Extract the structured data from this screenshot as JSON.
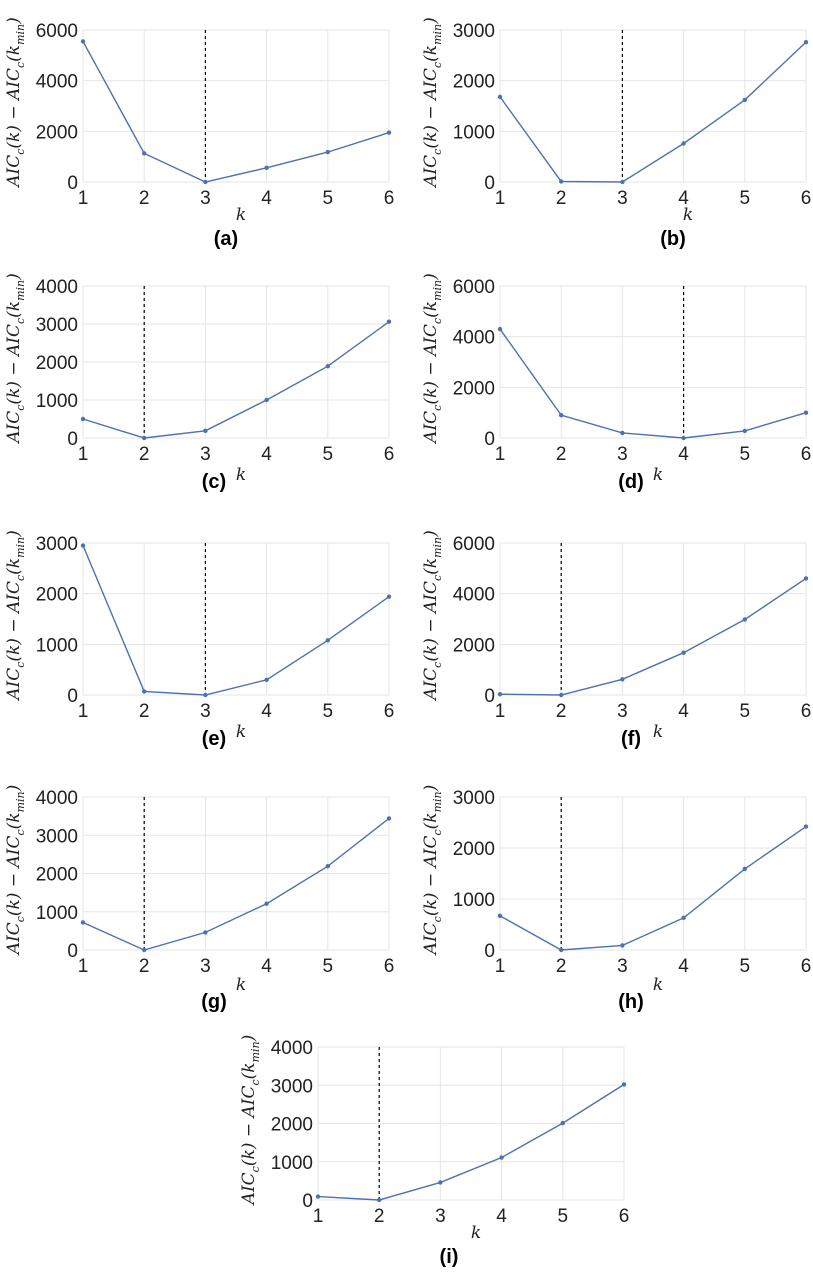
{
  "ylabel_parts": {
    "a": "AIC",
    "c": "c",
    "k_arg": "(k)",
    "minus": "−",
    "k_open": "(k",
    "min": "min",
    "close": ")"
  },
  "chart_data": [
    {
      "label": "(a)",
      "type": "line",
      "xlabel": "k",
      "x": [
        1,
        2,
        3,
        4,
        5,
        6
      ],
      "values": [
        5550,
        1130,
        0,
        560,
        1180,
        1950
      ],
      "yticks": [
        0,
        2000,
        4000,
        6000
      ],
      "ylim": [
        0,
        6000
      ],
      "k_min": 3
    },
    {
      "label": "(b)",
      "type": "line",
      "xlabel": "k",
      "x": [
        1,
        2,
        3,
        4,
        5,
        6
      ],
      "values": [
        1680,
        10,
        0,
        760,
        1620,
        2760
      ],
      "yticks": [
        0,
        1000,
        2000,
        3000
      ],
      "ylim": [
        0,
        3000
      ],
      "k_min": 3
    },
    {
      "label": "(c)",
      "type": "line",
      "xlabel": "k",
      "x": [
        1,
        2,
        3,
        4,
        5,
        6
      ],
      "values": [
        500,
        0,
        190,
        1000,
        1890,
        3060
      ],
      "yticks": [
        0,
        1000,
        2000,
        3000,
        4000
      ],
      "ylim": [
        0,
        4000
      ],
      "k_min": 2
    },
    {
      "label": "(d)",
      "type": "line",
      "xlabel": "k",
      "x": [
        1,
        2,
        3,
        4,
        5,
        6
      ],
      "values": [
        4300,
        900,
        200,
        0,
        280,
        1000
      ],
      "yticks": [
        0,
        2000,
        4000,
        6000
      ],
      "ylim": [
        0,
        6000
      ],
      "k_min": 4
    },
    {
      "label": "(e)",
      "type": "line",
      "xlabel": "k",
      "x": [
        1,
        2,
        3,
        4,
        5,
        6
      ],
      "values": [
        2950,
        70,
        0,
        300,
        1080,
        1940
      ],
      "yticks": [
        0,
        1000,
        2000,
        3000
      ],
      "ylim": [
        0,
        3000
      ],
      "k_min": 3
    },
    {
      "label": "(f)",
      "type": "line",
      "xlabel": "k",
      "x": [
        1,
        2,
        3,
        4,
        5,
        6
      ],
      "values": [
        30,
        0,
        620,
        1670,
        2980,
        4600
      ],
      "yticks": [
        0,
        2000,
        4000,
        6000
      ],
      "ylim": [
        0,
        6000
      ],
      "k_min": 2
    },
    {
      "label": "(g)",
      "type": "line",
      "xlabel": "k",
      "x": [
        1,
        2,
        3,
        4,
        5,
        6
      ],
      "values": [
        720,
        0,
        460,
        1210,
        2190,
        3440
      ],
      "yticks": [
        0,
        1000,
        2000,
        3000,
        4000
      ],
      "ylim": [
        0,
        4000
      ],
      "k_min": 2
    },
    {
      "label": "(h)",
      "type": "line",
      "xlabel": "k",
      "x": [
        1,
        2,
        3,
        4,
        5,
        6
      ],
      "values": [
        670,
        0,
        90,
        630,
        1590,
        2420
      ],
      "yticks": [
        0,
        1000,
        2000,
        3000
      ],
      "ylim": [
        0,
        3000
      ],
      "k_min": 2
    },
    {
      "label": "(i)",
      "type": "line",
      "xlabel": "k",
      "x": [
        1,
        2,
        3,
        4,
        5,
        6
      ],
      "values": [
        90,
        0,
        460,
        1110,
        2010,
        3020
      ],
      "yticks": [
        0,
        1000,
        2000,
        3000,
        4000
      ],
      "ylim": [
        0,
        4000
      ],
      "k_min": 2
    }
  ]
}
